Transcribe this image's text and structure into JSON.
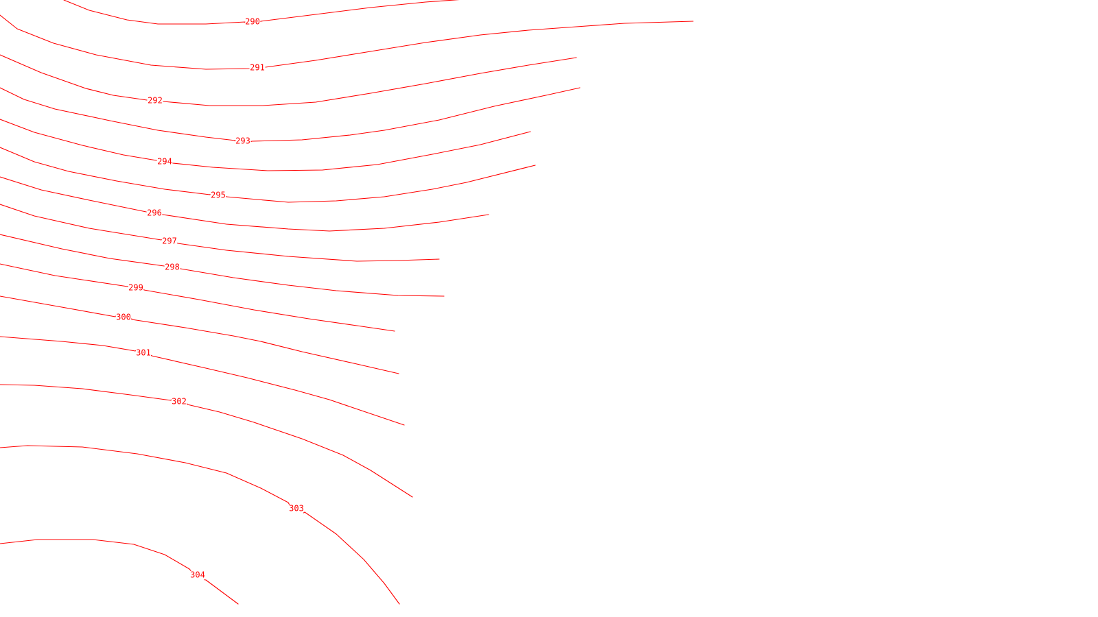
{
  "map": {
    "line_color": "#ff0000",
    "background_color": "#ffffff",
    "contours": [
      {
        "label": "290"
      },
      {
        "label": "291"
      },
      {
        "label": "292"
      },
      {
        "label": "293"
      },
      {
        "label": "294"
      },
      {
        "label": "295"
      },
      {
        "label": "296"
      },
      {
        "label": "297"
      },
      {
        "label": "298"
      },
      {
        "label": "299"
      },
      {
        "label": "300"
      },
      {
        "label": "301"
      },
      {
        "label": "302"
      },
      {
        "label": "303"
      },
      {
        "label": "304"
      }
    ]
  }
}
